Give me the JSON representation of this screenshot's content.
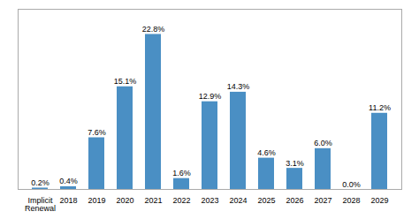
{
  "chart_data": {
    "type": "bar",
    "categories": [
      "Implicit\nRenewal",
      "2018",
      "2019",
      "2020",
      "2021",
      "2022",
      "2023",
      "2024",
      "2025",
      "2026",
      "2027",
      "2028",
      "2029"
    ],
    "values": [
      0.2,
      0.4,
      7.6,
      15.1,
      22.8,
      1.6,
      12.9,
      14.3,
      4.6,
      3.1,
      6.0,
      0.0,
      11.2
    ],
    "value_labels": [
      "0.2%",
      "0.4%",
      "7.6%",
      "15.1%",
      "22.8%",
      "1.6%",
      "12.9%",
      "14.3%",
      "4.6%",
      "3.1%",
      "6.0%",
      "0.0%",
      "11.2%"
    ],
    "color": "#4a8fc4",
    "ylim": [
      0,
      26.5
    ],
    "grid": false,
    "data_labels": true,
    "tick_labels": "x"
  }
}
